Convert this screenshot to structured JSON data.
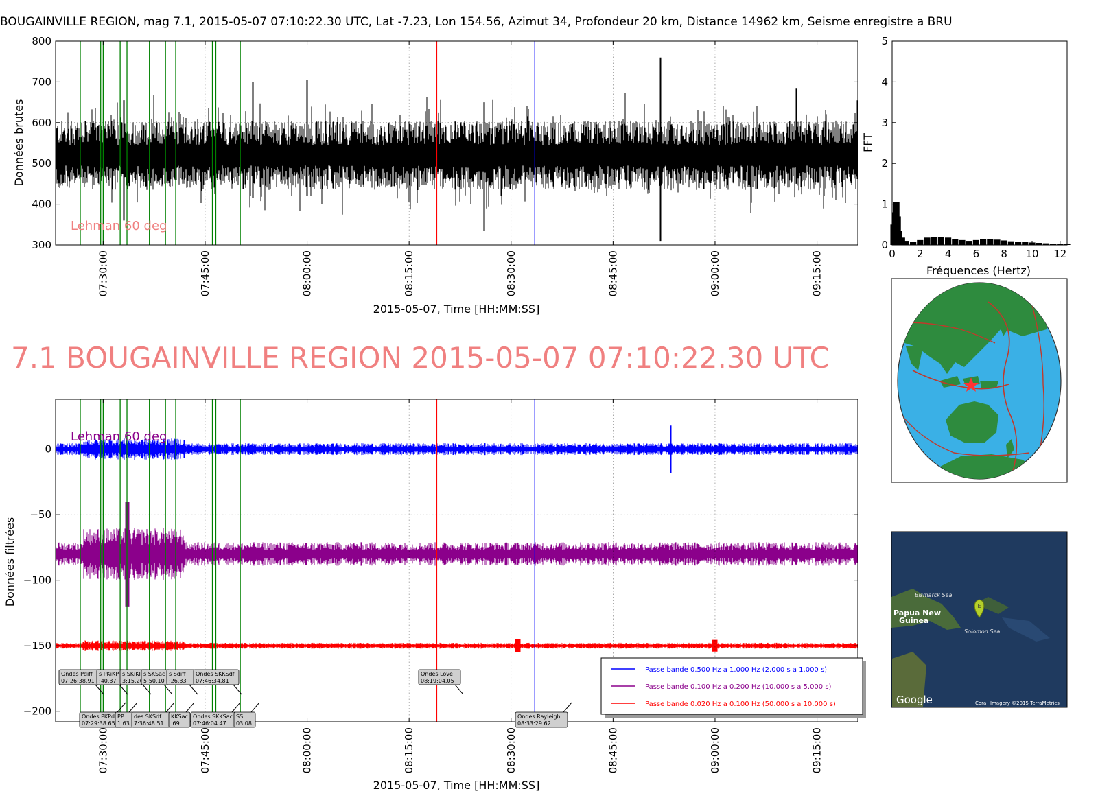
{
  "figure": {
    "top_title": "BOUGAINVILLE REGION, mag 7.1, 2015-05-07 07:10:22.30 UTC, Lat -7.23, Lon 154.56, Azimut  34, Profondeur 20 km, Distance 14962 km, Seisme enregistre a BRU",
    "big_title": "7.1 BOUGAINVILLE REGION 2015-05-07 07:10:22.30 UTC",
    "big_title_color": "#f08080"
  },
  "chart_data": [
    {
      "type": "line",
      "name": "raw",
      "ylabel": "Données brutes",
      "xlabel": "2015-05-07, Time [HH:MM:SS]",
      "ylim": [
        300,
        800
      ],
      "yticks": [
        300,
        400,
        500,
        600,
        700,
        800
      ],
      "xlim": [
        "07:23:00",
        "09:21:00"
      ],
      "xticks": [
        "07:30:00",
        "07:45:00",
        "08:00:00",
        "08:15:00",
        "08:30:00",
        "08:45:00",
        "09:00:00",
        "09:15:00"
      ],
      "grid": true,
      "annotation": "Lehman 60 deg",
      "annotation_color": "#f08080",
      "series": [
        {
          "color": "#000000",
          "baseline": 520,
          "typical_range": [
            440,
            580
          ],
          "peak_spikes": [
            {
              "t": "07:33:00",
              "min": 360,
              "max": 655
            },
            {
              "t": "07:52:00",
              "min": 415,
              "max": 700
            },
            {
              "t": "08:00:00",
              "min": 420,
              "max": 705
            },
            {
              "t": "08:26:00",
              "min": 335,
              "max": 650
            },
            {
              "t": "08:52:00",
              "min": 310,
              "max": 760
            },
            {
              "t": "09:12:00",
              "min": 450,
              "max": 685
            }
          ]
        }
      ],
      "phase_lines": [
        {
          "t": "07:26:38",
          "color": "#008000"
        },
        {
          "t": "07:29:38",
          "color": "#008000"
        },
        {
          "t": "07:30:00",
          "color": "#008000"
        },
        {
          "t": "07:32:30",
          "color": "#008000"
        },
        {
          "t": "07:33:30",
          "color": "#008000"
        },
        {
          "t": "07:36:48",
          "color": "#008000"
        },
        {
          "t": "07:39:10",
          "color": "#008000"
        },
        {
          "t": "07:40:40",
          "color": "#008000"
        },
        {
          "t": "07:46:04",
          "color": "#008000"
        },
        {
          "t": "07:46:34",
          "color": "#008000"
        },
        {
          "t": "07:50:10",
          "color": "#008000"
        },
        {
          "t": "08:19:04",
          "color": "#ff0000"
        },
        {
          "t": "08:33:29",
          "color": "#0000ff"
        }
      ]
    },
    {
      "type": "bar",
      "name": "fft",
      "ylabel": "FFT",
      "xlabel": "Fréquences (Hertz)",
      "xlim": [
        0,
        12.5
      ],
      "ylim": [
        0,
        5
      ],
      "xticks": [
        0,
        2,
        4,
        6,
        8,
        10,
        12
      ],
      "yticks": [
        0,
        1,
        2,
        3,
        4,
        5
      ],
      "x": [
        0.1,
        0.2,
        0.3,
        0.4,
        0.5,
        0.7,
        1.0,
        1.5,
        2.0,
        2.5,
        3.0,
        3.5,
        4.0,
        4.5,
        5.0,
        5.5,
        6.0,
        6.5,
        7.0,
        7.5,
        8.0,
        8.5,
        9.0,
        9.5,
        10.0,
        10.5,
        11.0,
        11.5,
        12.0,
        12.5
      ],
      "values": [
        0.5,
        0.8,
        1.05,
        0.7,
        0.35,
        0.18,
        0.1,
        0.07,
        0.12,
        0.18,
        0.2,
        0.2,
        0.18,
        0.15,
        0.12,
        0.1,
        0.12,
        0.14,
        0.15,
        0.13,
        0.11,
        0.09,
        0.08,
        0.07,
        0.06,
        0.05,
        0.04,
        0.03,
        0.02,
        0.02
      ]
    },
    {
      "type": "line",
      "name": "filtered",
      "ylabel": "Données filtrées",
      "xlabel": "2015-05-07, Time [HH:MM:SS]",
      "ylim": [
        -208,
        38
      ],
      "yticks": [
        -200,
        -150,
        -100,
        -50,
        0
      ],
      "xlim": [
        "07:23:00",
        "09:21:00"
      ],
      "xticks": [
        "07:30:00",
        "07:45:00",
        "08:00:00",
        "08:15:00",
        "08:30:00",
        "08:45:00",
        "09:00:00",
        "09:15:00"
      ],
      "grid": true,
      "annotation": "Lehman 60 deg",
      "annotation_color": "#8b008b",
      "series": [
        {
          "name": "Passe bande 0.500 Hz a 1.000 Hz (2.000 s a 1.000 s)",
          "color": "#0000ff",
          "baseline": 0,
          "amplitude": 3
        },
        {
          "name": "Passe bande 0.100 Hz a 0.200 Hz (10.000 s a 5.000 s)",
          "color": "#8b008b",
          "baseline": -80,
          "amplitude": 6
        },
        {
          "name": "Passe bande 0.020 Hz a 0.100 Hz (50.000 s a 10.000 s)",
          "color": "#ff0000",
          "baseline": -150,
          "amplitude": 1.5
        }
      ],
      "legend_position": "lower right",
      "arrival_labels": [
        {
          "row": "top",
          "lines": [
            "Ondes Pdiff",
            "07:26:38.91"
          ]
        },
        {
          "row": "top",
          "lines": [
            "s PKiKP",
            ":40.37"
          ]
        },
        {
          "row": "top",
          "lines": [
            "s SKiKP",
            "3:15.26"
          ]
        },
        {
          "row": "top",
          "lines": [
            "s SKSac",
            "5:50.10"
          ]
        },
        {
          "row": "top",
          "lines": [
            "s Sdiff",
            ":26.33"
          ]
        },
        {
          "row": "top",
          "lines": [
            "Ondes SKKSdf",
            "07:46:34.81"
          ]
        },
        {
          "row": "top",
          "lines": [
            "Ondes Love",
            "08:19:04.05"
          ]
        },
        {
          "row": "bottom",
          "lines": [
            "Ondes PKPdf",
            "07:29:38.65"
          ]
        },
        {
          "row": "bottom",
          "lines": [
            "PP",
            "1.63"
          ]
        },
        {
          "row": "bottom",
          "lines": [
            "des SKSdf",
            "7:36:48.51"
          ]
        },
        {
          "row": "bottom",
          "lines": [
            "KKSac",
            ".69"
          ]
        },
        {
          "row": "bottom",
          "lines": [
            "Ondes SKKSac",
            "07:46:04.47"
          ]
        },
        {
          "row": "bottom",
          "lines": [
            "SS",
            "03.08"
          ]
        },
        {
          "row": "bottom",
          "lines": [
            "Ondes Rayleigh",
            "08:33:29.62"
          ]
        }
      ]
    }
  ],
  "globe_panel": {
    "epicenter_marker": "red-star",
    "continent_color": "#2e8b3e",
    "ocean_color": "#3ab0e6",
    "plate_color": "#c0392b"
  },
  "satellite_panel": {
    "labels": [
      "Bismarck Sea",
      "Papua New",
      "Guinea",
      "Solomon Sea"
    ],
    "marker_letter": "E",
    "google": "Google",
    "credit": "Imagery ©2015 TerraMetrics",
    "credit_prefix": "Cora"
  }
}
